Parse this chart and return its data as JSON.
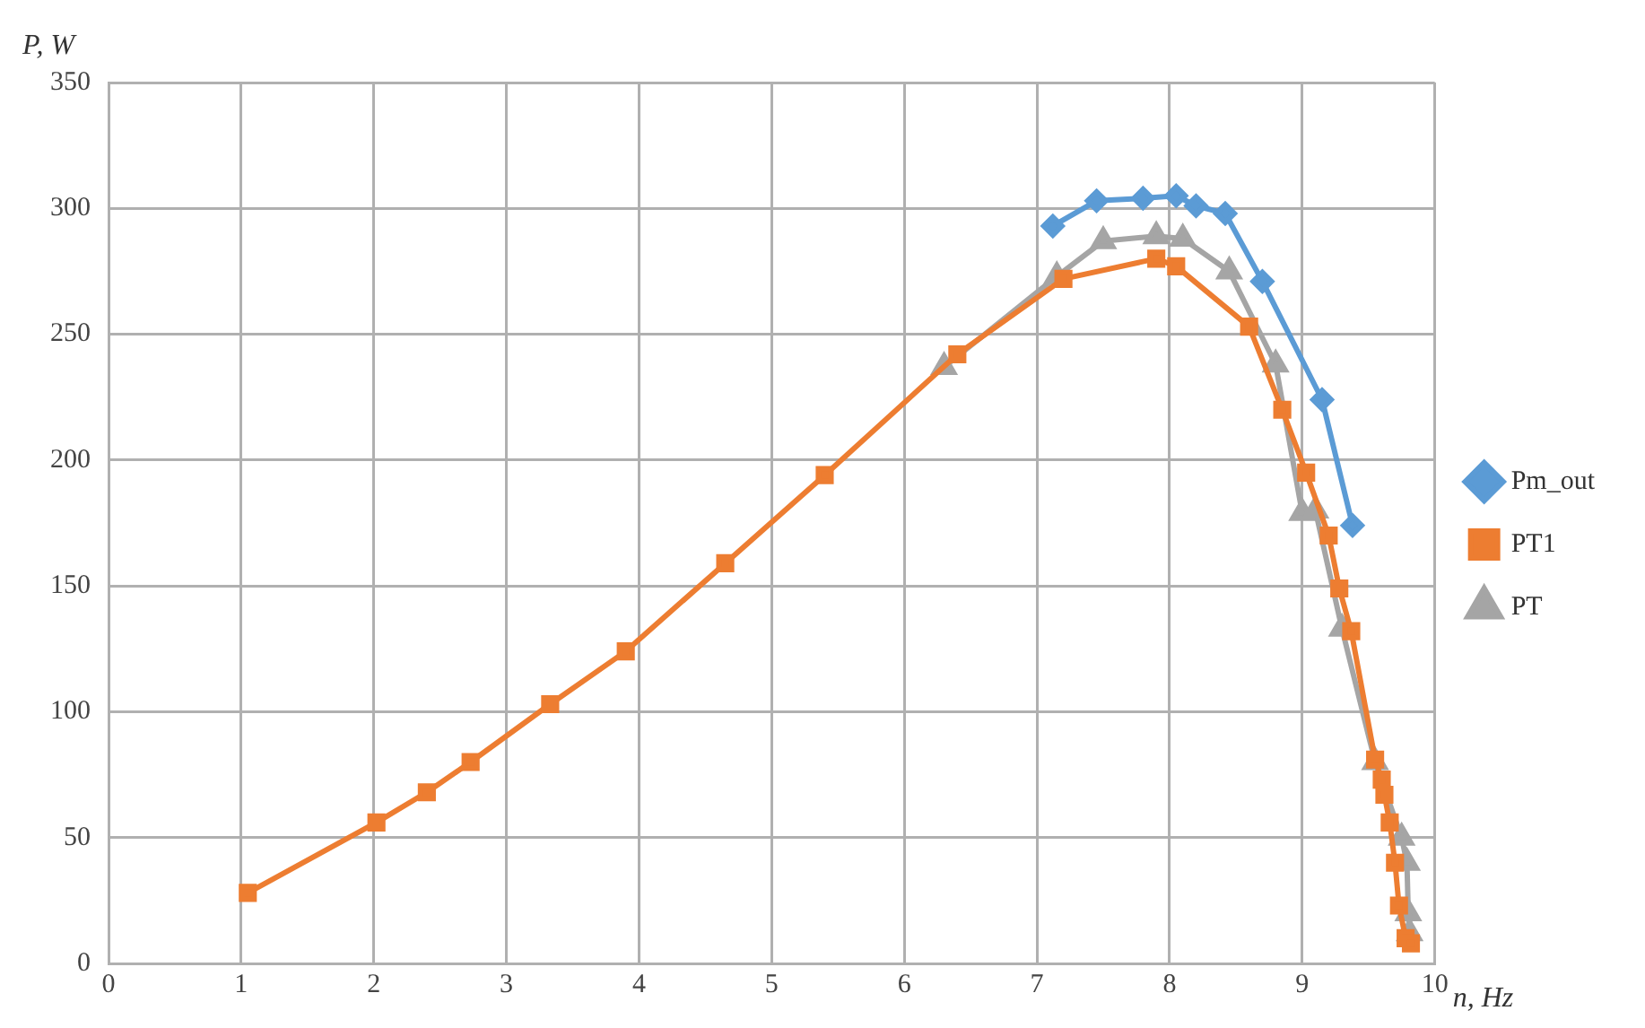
{
  "chart_data": {
    "type": "line",
    "xlabel": "n, Hz",
    "ylabel": "P, W",
    "xlim": [
      0,
      10
    ],
    "xticks": [
      0,
      1,
      2,
      3,
      4,
      5,
      6,
      7,
      8,
      9,
      10
    ],
    "ylim": [
      0,
      350
    ],
    "yticks": [
      0,
      50,
      100,
      150,
      200,
      250,
      300,
      350
    ],
    "grid": true,
    "legend": "right",
    "line_style": "solid",
    "series": [
      {
        "name": "Pm_out",
        "color": "#5b9bd5",
        "marker": "diamond",
        "x": [
          7.12,
          7.45,
          7.8,
          8.05,
          8.2,
          8.42,
          8.7,
          9.15,
          9.38
        ],
        "values": [
          293,
          303,
          304,
          305,
          301,
          298,
          271,
          224,
          174
        ]
      },
      {
        "name": "PT1",
        "color": "#ed7d31",
        "marker": "square",
        "x": [
          1.05,
          2.02,
          2.4,
          2.73,
          3.33,
          3.9,
          4.65,
          5.4,
          6.4,
          7.2,
          7.9,
          8.05,
          8.6,
          8.85,
          9.03,
          9.2,
          9.28,
          9.37,
          9.55,
          9.6,
          9.62,
          9.66,
          9.7,
          9.73,
          9.78,
          9.82
        ],
        "values": [
          28,
          56,
          68,
          80,
          103,
          124,
          159,
          194,
          242,
          272,
          280,
          277,
          253,
          220,
          195,
          170,
          149,
          132,
          81,
          73,
          67,
          56,
          40,
          23,
          10,
          8
        ]
      },
      {
        "name": "PT",
        "color": "#a5a5a5",
        "marker": "triangle",
        "x": [
          6.3,
          7.15,
          7.5,
          7.9,
          8.1,
          8.45,
          8.8,
          9.0,
          9.1,
          9.3,
          9.55,
          9.75,
          9.79,
          9.8,
          9.81
        ],
        "values": [
          237,
          273,
          287,
          289,
          288,
          275,
          238,
          179,
          180,
          133,
          80,
          50,
          40,
          20,
          12
        ]
      }
    ]
  }
}
